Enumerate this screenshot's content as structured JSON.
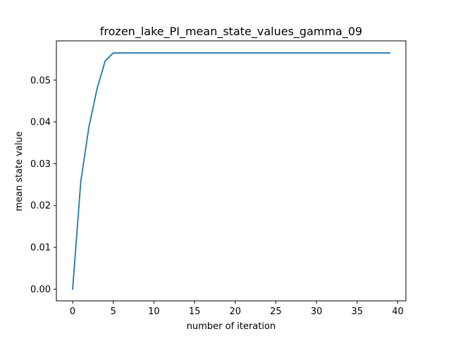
{
  "chart_data": {
    "type": "line",
    "title": "frozen_lake_PI_mean_state_values_gamma_09",
    "xlabel": "number of iteration",
    "ylabel": "mean state value",
    "xlim": [
      -2,
      41
    ],
    "ylim": [
      -0.0028,
      0.0594
    ],
    "xticks": [
      0,
      5,
      10,
      15,
      20,
      25,
      30,
      35,
      40
    ],
    "xtick_labels": [
      "0",
      "5",
      "10",
      "15",
      "20",
      "25",
      "30",
      "35",
      "40"
    ],
    "yticks": [
      0.0,
      0.01,
      0.02,
      0.03,
      0.04,
      0.05
    ],
    "ytick_labels": [
      "0.00",
      "0.01",
      "0.02",
      "0.03",
      "0.04",
      "0.05"
    ],
    "grid": false,
    "series": [
      {
        "color": "#1f77b4",
        "x": [
          0,
          1,
          2,
          3,
          4,
          5,
          6,
          7,
          8,
          9,
          10,
          11,
          12,
          13,
          14,
          15,
          16,
          17,
          18,
          19,
          20,
          21,
          22,
          23,
          24,
          25,
          26,
          27,
          28,
          29,
          30,
          31,
          32,
          33,
          34,
          35,
          36,
          37,
          38,
          39
        ],
        "y": [
          0.0,
          0.0257,
          0.0388,
          0.0479,
          0.0546,
          0.0565,
          0.0565,
          0.0565,
          0.0565,
          0.0565,
          0.0565,
          0.0565,
          0.0565,
          0.0565,
          0.0565,
          0.0565,
          0.0565,
          0.0565,
          0.0565,
          0.0565,
          0.0565,
          0.0565,
          0.0565,
          0.0565,
          0.0565,
          0.0565,
          0.0565,
          0.0565,
          0.0565,
          0.0565,
          0.0565,
          0.0565,
          0.0565,
          0.0565,
          0.0565,
          0.0565,
          0.0565,
          0.0565,
          0.0565,
          0.0565
        ]
      }
    ]
  }
}
